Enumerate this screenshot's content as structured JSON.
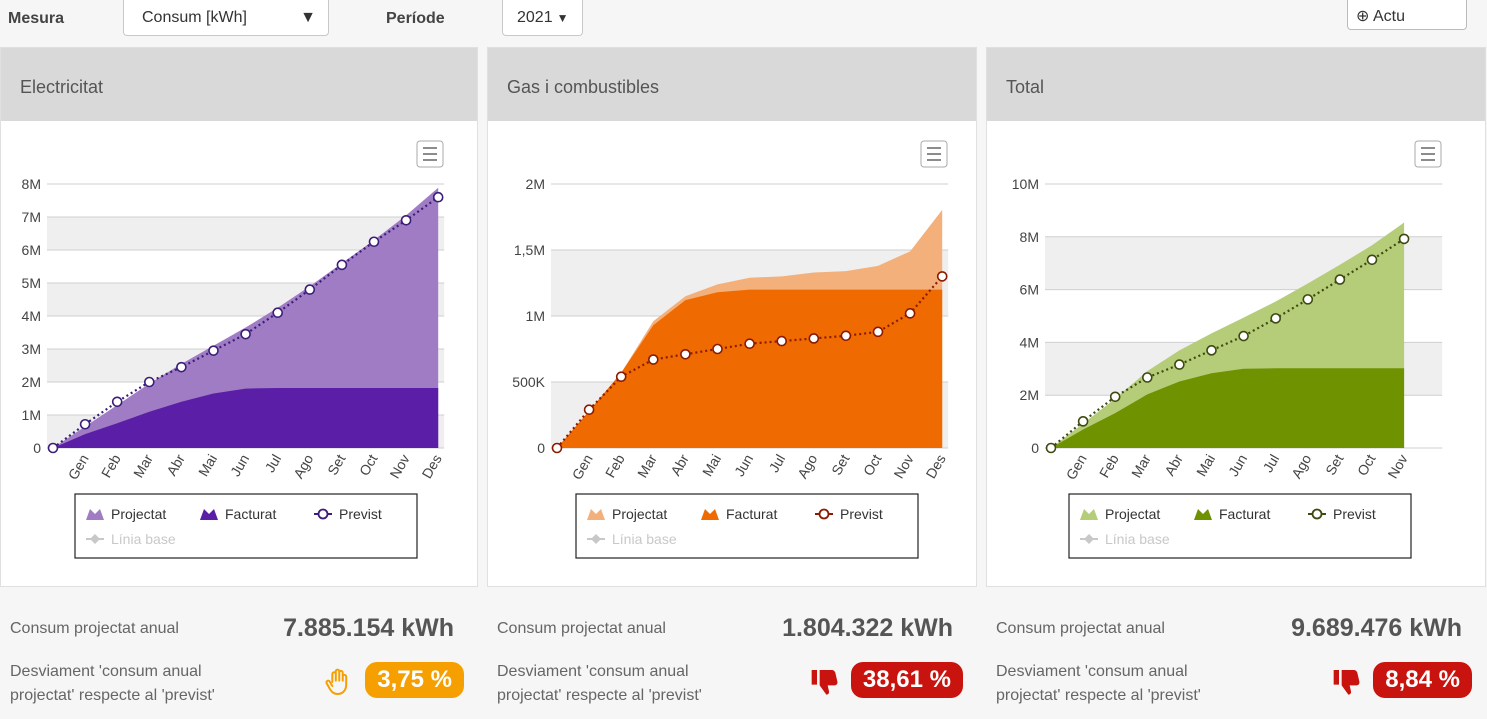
{
  "toolbar": {
    "measure_label": "Mesura",
    "measure_value": "Consum [kWh]",
    "period_label": "Període",
    "period_value": "2021",
    "refresh_button": "Actu"
  },
  "chart_data": [
    {
      "type": "area",
      "title": "Electricitat",
      "categories": [
        null,
        "Gen",
        "Feb",
        "Mar",
        "Abr",
        "Mai",
        "Jun",
        "Jul",
        "Ago",
        "Set",
        "Oct",
        "Nov",
        "Des"
      ],
      "series": [
        {
          "name": "Projectat",
          "type": "area",
          "color": "#a07cc5",
          "values": [
            0,
            650000,
            1300000,
            1950000,
            2550000,
            3100000,
            3650000,
            4250000,
            4900000,
            5600000,
            6300000,
            7050000,
            7885154
          ]
        },
        {
          "name": "Facturat",
          "type": "area",
          "color": "#5b1ea6",
          "values": [
            0,
            420000,
            750000,
            1100000,
            1400000,
            1650000,
            1800000,
            1820000,
            1820000,
            1820000,
            1820000,
            1820000,
            1820000
          ]
        },
        {
          "name": "Previst",
          "type": "line",
          "color": "#3b1d7a",
          "values": [
            0,
            720000,
            1400000,
            2000000,
            2450000,
            2950000,
            3450000,
            4100000,
            4800000,
            5550000,
            6250000,
            6900000,
            7600000
          ]
        },
        {
          "name": "Línia base",
          "type": "line",
          "color": "#c8c8c8",
          "visible": false
        }
      ],
      "ylim": [
        0,
        8000000
      ],
      "yticks": [
        0,
        {
          "value": 1000000,
          "label": "1M"
        },
        {
          "value": 2000000,
          "label": "2M"
        },
        {
          "value": 3000000,
          "label": "3M"
        },
        {
          "value": 4000000,
          "label": "4M"
        },
        {
          "value": 5000000,
          "label": "5M"
        },
        {
          "value": 6000000,
          "label": "6M"
        },
        {
          "value": 7000000,
          "label": "7M"
        },
        {
          "value": 8000000,
          "label": "8M"
        }
      ],
      "grid": true
    },
    {
      "type": "area",
      "title": "Gas i combustibles",
      "categories": [
        null,
        "Gen",
        "Feb",
        "Mar",
        "Abr",
        "Mai",
        "Jun",
        "Jul",
        "Ago",
        "Set",
        "Oct",
        "Nov",
        "Des"
      ],
      "series": [
        {
          "name": "Projectat",
          "type": "area",
          "color": "#f4b07a",
          "values": [
            0,
            280000,
            570000,
            960000,
            1150000,
            1240000,
            1290000,
            1300000,
            1330000,
            1340000,
            1380000,
            1490000,
            1804322
          ]
        },
        {
          "name": "Facturat",
          "type": "area",
          "color": "#ef6a00",
          "values": [
            0,
            280000,
            570000,
            930000,
            1120000,
            1180000,
            1200000,
            1200000,
            1200000,
            1200000,
            1200000,
            1200000,
            1200000
          ]
        },
        {
          "name": "Previst",
          "type": "line",
          "color": "#8b1a00",
          "values": [
            0,
            290000,
            540000,
            670000,
            710000,
            750000,
            790000,
            810000,
            830000,
            850000,
            880000,
            1020000,
            1300000
          ]
        },
        {
          "name": "Línia base",
          "type": "line",
          "color": "#c8c8c8",
          "visible": false
        }
      ],
      "ylim": [
        0,
        2000000
      ],
      "yticks": [
        0,
        {
          "value": 500000,
          "label": "500K"
        },
        {
          "value": 1000000,
          "label": "1M"
        },
        {
          "value": 1500000,
          "label": "1,5M"
        },
        {
          "value": 2000000,
          "label": "2M"
        }
      ],
      "grid": true
    },
    {
      "type": "area",
      "title": "Total",
      "categories": [
        null,
        "Gen",
        "Feb",
        "Mar",
        "Abr",
        "Mai",
        "Jun",
        "Jul",
        "Ago",
        "Set",
        "Oct",
        "Nov"
      ],
      "series": [
        {
          "name": "Projectat",
          "type": "area",
          "color": "#b5cc78",
          "values": [
            0,
            930000,
            1870000,
            2910000,
            3700000,
            4340000,
            4940000,
            5550000,
            6230000,
            6940000,
            7680000,
            8540000
          ]
        },
        {
          "name": "Facturat",
          "type": "area",
          "color": "#6f9200",
          "values": [
            0,
            700000,
            1320000,
            2030000,
            2520000,
            2830000,
            3000000,
            3020000,
            3020000,
            3020000,
            3020000,
            3020000
          ]
        },
        {
          "name": "Previst",
          "type": "line",
          "color": "#3d4a10",
          "values": [
            0,
            1010000,
            1940000,
            2670000,
            3160000,
            3700000,
            4240000,
            4910000,
            5630000,
            6380000,
            7130000,
            7920000
          ]
        },
        {
          "name": "Línia base",
          "type": "line",
          "color": "#c8c8c8",
          "visible": false
        }
      ],
      "ylim": [
        0,
        10000000
      ],
      "yticks": [
        0,
        {
          "value": 2000000,
          "label": "2M"
        },
        {
          "value": 4000000,
          "label": "4M"
        },
        {
          "value": 6000000,
          "label": "6M"
        },
        {
          "value": 8000000,
          "label": "8M"
        },
        {
          "value": 10000000,
          "label": "10M"
        }
      ],
      "grid": true
    }
  ],
  "panels": [
    {
      "stat_label": "Consum projectat anual",
      "stat_value": "7.885.154 kWh",
      "deviation_label": "Desviament 'consum anual projectat' respecte al 'previst'",
      "deviation_value": "3,75 %",
      "badge_color": "#f5a000",
      "icon": "hand"
    },
    {
      "stat_label": "Consum projectat anual",
      "stat_value": "1.804.322 kWh",
      "deviation_label": "Desviament 'consum anual projectat' respecte al 'previst'",
      "deviation_value": "38,61 %",
      "badge_color": "#c8130e",
      "icon": "thumb-down"
    },
    {
      "stat_label": "Consum projectat anual",
      "stat_value": "9.689.476 kWh",
      "deviation_label": "Desviament 'consum anual projectat' respecte al 'previst'",
      "deviation_value": "8,84 %",
      "badge_color": "#c8130e",
      "icon": "thumb-down"
    }
  ]
}
